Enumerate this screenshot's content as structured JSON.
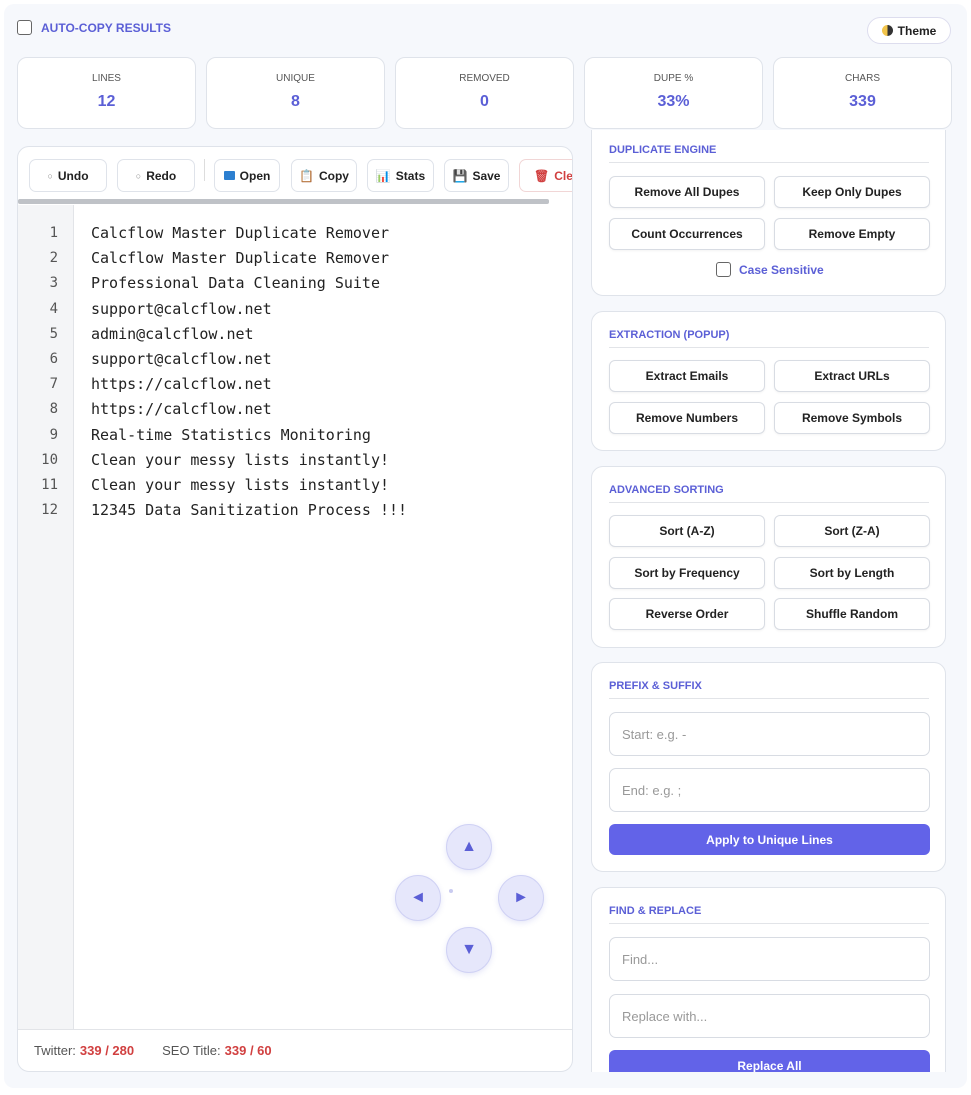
{
  "header": {
    "auto_copy_label": "AUTO-COPY RESULTS",
    "theme_label": "Theme"
  },
  "stats": [
    {
      "label": "LINES",
      "value": "12"
    },
    {
      "label": "UNIQUE",
      "value": "8"
    },
    {
      "label": "REMOVED",
      "value": "0"
    },
    {
      "label": "DUPE %",
      "value": "33%"
    },
    {
      "label": "CHARS",
      "value": "339"
    }
  ],
  "toolbar": {
    "undo": "Undo",
    "redo": "Redo",
    "open": "Open",
    "copy": "Copy",
    "stats": "Stats",
    "save": "Save",
    "clear": "Clear"
  },
  "editor": {
    "lines": [
      "Calcflow Master Duplicate Remover",
      "Calcflow Master Duplicate Remover",
      "Professional Data Cleaning Suite",
      "support@calcflow.net",
      "admin@calcflow.net",
      "support@calcflow.net",
      "https://calcflow.net",
      "https://calcflow.net",
      "Real-time Statistics Monitoring",
      "Clean your messy lists instantly!",
      "Clean your messy lists instantly!",
      "12345 Data Sanitization Process !!!"
    ],
    "line_numbers": [
      "1",
      "2",
      "3",
      "4",
      "5",
      "6",
      "7",
      "8",
      "9",
      "10",
      "11",
      "12"
    ],
    "arrows": {
      "up": "▲",
      "down": "▼",
      "left": "◄",
      "right": "►"
    }
  },
  "footer": {
    "twitter_label": "Twitter:",
    "twitter_value": "339 / 280",
    "seo_label": "SEO Title:",
    "seo_value": "339 / 60"
  },
  "panels": {
    "duplicate": {
      "title": "DUPLICATE ENGINE",
      "buttons": [
        "Remove All Dupes",
        "Keep Only Dupes",
        "Count Occurrences",
        "Remove Empty"
      ],
      "case_sensitive": "Case Sensitive"
    },
    "extraction": {
      "title": "EXTRACTION (POPUP)",
      "buttons": [
        "Extract Emails",
        "Extract URLs",
        "Remove Numbers",
        "Remove Symbols"
      ]
    },
    "sorting": {
      "title": "ADVANCED SORTING",
      "buttons": [
        "Sort (A-Z)",
        "Sort (Z-A)",
        "Sort by Frequency",
        "Sort by Length",
        "Reverse Order",
        "Shuffle Random"
      ]
    },
    "prefix": {
      "title": "PREFIX & SUFFIX",
      "start_placeholder": "Start: e.g. -",
      "end_placeholder": "End: e.g. ;",
      "apply": "Apply to Unique Lines"
    },
    "find": {
      "title": "FIND & REPLACE",
      "find_placeholder": "Find...",
      "replace_placeholder": "Replace with...",
      "replace_all": "Replace All"
    }
  },
  "colors": {
    "accent": "#5b5fd6",
    "primary_button": "#6263e8",
    "warning": "#d14040"
  }
}
